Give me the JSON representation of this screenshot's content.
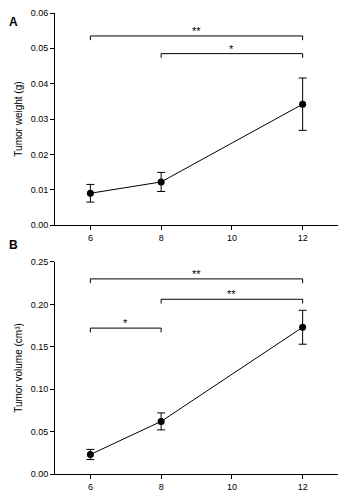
{
  "chart_data": [
    {
      "type": "line",
      "panel_label": "A",
      "y_label": "Tumor weight (g)",
      "x": [
        6,
        8,
        12
      ],
      "values": [
        0.009,
        0.0122,
        0.0342
      ],
      "errors": [
        0.0025,
        0.0027,
        0.0074
      ],
      "color": "#000000",
      "marker": "circle",
      "line_style": "solid",
      "xlim": [
        5,
        13
      ],
      "xticks": [
        6,
        8,
        10,
        12
      ],
      "ylim": [
        0,
        0.06
      ],
      "yticks": [
        {
          "value": 0,
          "label": "0.00"
        },
        {
          "value": 0.01,
          "label": "0.01"
        },
        {
          "value": 0.02,
          "label": "0.02"
        },
        {
          "value": 0.03,
          "label": "0.03"
        },
        {
          "value": 0.04,
          "label": "0.04"
        },
        {
          "value": 0.05,
          "label": "0.05"
        },
        {
          "value": 0.06,
          "label": "0.06"
        }
      ],
      "grid": false,
      "comparisons": [
        {
          "x0": 6,
          "x1": 12,
          "y": 0.0535,
          "text": "**"
        },
        {
          "x0": 8,
          "x1": 12,
          "y": 0.0485,
          "text": "*"
        }
      ]
    },
    {
      "type": "line",
      "panel_label": "B",
      "y_label": "Tumor volume (cm³)",
      "x": [
        6,
        8,
        12
      ],
      "values": [
        0.023,
        0.062,
        0.173
      ],
      "errors": [
        0.006,
        0.01,
        0.02
      ],
      "color": "#000000",
      "marker": "circle",
      "line_style": "solid",
      "xlim": [
        5,
        13
      ],
      "xticks": [
        6,
        8,
        10,
        12
      ],
      "ylim": [
        0,
        0.25
      ],
      "yticks": [
        {
          "value": 0,
          "label": "0.00"
        },
        {
          "value": 0.05,
          "label": "0.05"
        },
        {
          "value": 0.1,
          "label": "0.10"
        },
        {
          "value": 0.15,
          "label": "0.15"
        },
        {
          "value": 0.2,
          "label": "0.20"
        },
        {
          "value": 0.25,
          "label": "0.25"
        }
      ],
      "grid": false,
      "comparisons": [
        {
          "x0": 6,
          "x1": 12,
          "y": 0.23,
          "text": "**"
        },
        {
          "x0": 8,
          "x1": 12,
          "y": 0.206,
          "text": "**"
        },
        {
          "x0": 6,
          "x1": 8,
          "y": 0.172,
          "text": "*"
        }
      ]
    }
  ]
}
